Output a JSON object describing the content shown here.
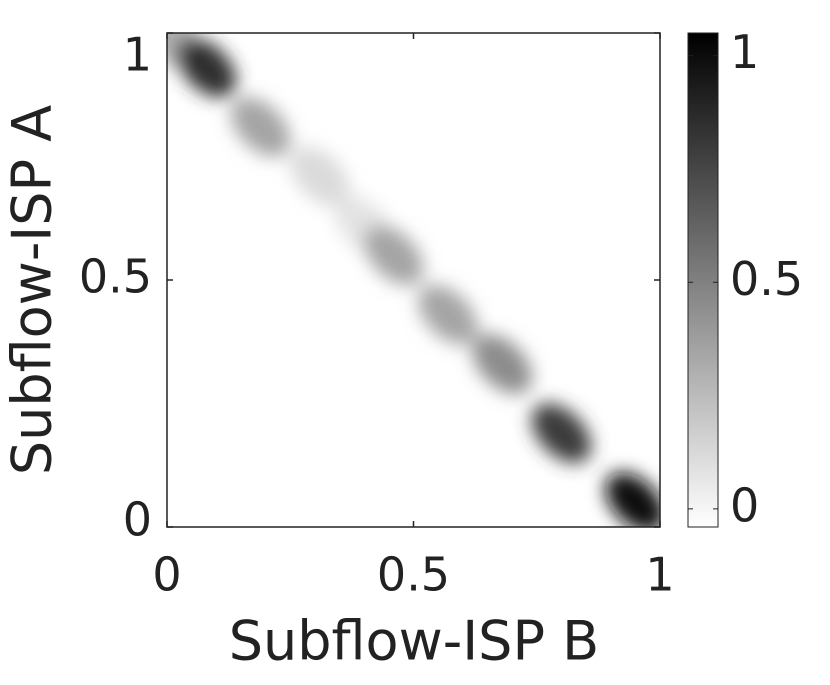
{
  "chart_data": {
    "type": "heatmap",
    "xlabel": "Subflow-ISP B",
    "ylabel": "Subflow-ISP A",
    "x": [
      0.02,
      0.08,
      0.19,
      0.31,
      0.4,
      0.46,
      0.57,
      0.68,
      0.8,
      0.95
    ],
    "y": [
      0.98,
      0.93,
      0.81,
      0.71,
      0.61,
      0.55,
      0.43,
      0.33,
      0.19,
      0.05
    ],
    "values": [
      0.3,
      0.85,
      0.35,
      0.12,
      0.08,
      0.35,
      0.35,
      0.45,
      0.8,
      1.0
    ],
    "xlim": [
      0,
      1
    ],
    "ylim": [
      0,
      1
    ],
    "xticks": [
      0,
      0.5,
      1
    ],
    "yticks": [
      0,
      0.5,
      1
    ],
    "clim": [
      -0.04,
      1.05
    ],
    "cticks": [
      0,
      0.5,
      1
    ],
    "colormap": [
      "#ffffff",
      "#000000"
    ]
  }
}
